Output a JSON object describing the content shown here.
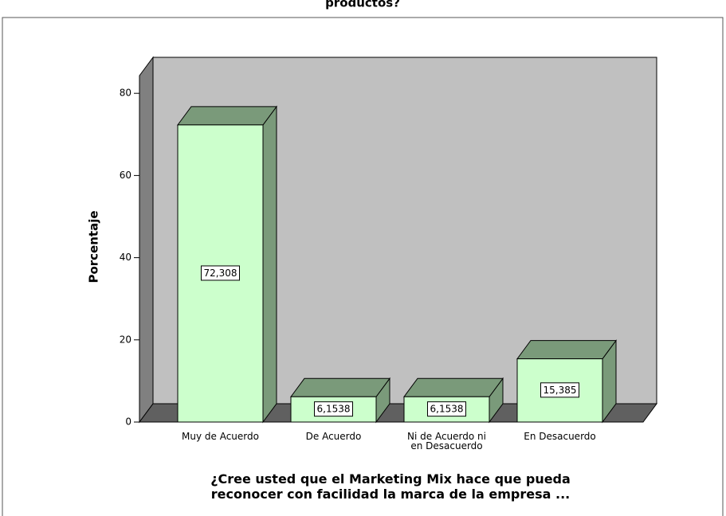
{
  "chart_data": {
    "type": "bar3d",
    "title": "productos?",
    "y_label": "Porcentaje",
    "x_label": "¿Cree usted que el Marketing Mix hace que pueda reconocer con facilidad la marca de la empresa ...",
    "categories": [
      "Muy de Acuerdo",
      "De Acuerdo",
      "Ni de Acuerdo ni en Desacuerdo",
      "En Desacuerdo"
    ],
    "values": [
      72.308,
      6.1538,
      6.1538,
      15.385
    ],
    "value_labels": [
      "72,308",
      "6,1538",
      "6,1538",
      "15,385"
    ],
    "color": "#ccffcc",
    "side_color": "#7a9a7a",
    "ylim": [
      0,
      84.3
    ],
    "yticks": [
      0,
      20,
      40,
      60,
      80
    ]
  }
}
